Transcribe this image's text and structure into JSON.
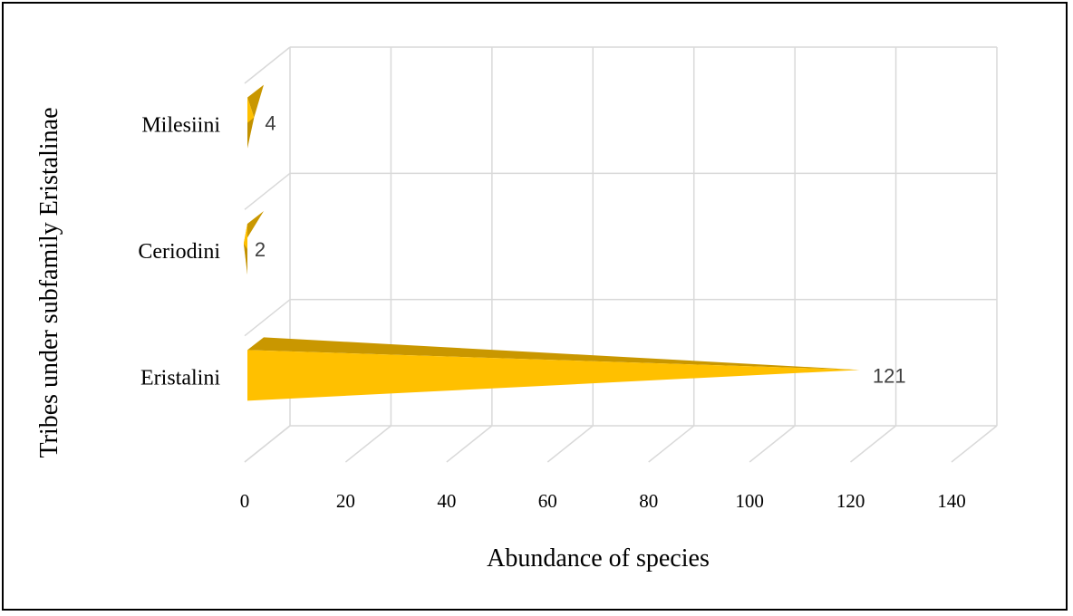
{
  "chart_data": {
    "type": "bar",
    "orientation": "horizontal",
    "style": "3d-cone",
    "categories": [
      "Milesiini",
      "Ceriodini",
      "Eristalini"
    ],
    "values": [
      4,
      2,
      121
    ],
    "data_labels": [
      "4",
      "2",
      "121"
    ],
    "xlabel": "Abundance of species",
    "ylabel": "Tribes under subfamily Eristalinae",
    "xlim": [
      0,
      140
    ],
    "x_ticks": [
      "0",
      "20",
      "40",
      "60",
      "80",
      "100",
      "120",
      "140"
    ],
    "grid": true,
    "legend": "none",
    "colors": {
      "bar_front": "#FFC000",
      "bar_top": "#C99700",
      "bar_dark": "#8F6A00",
      "grid": "#D9D9D9",
      "label": "#404040"
    }
  }
}
